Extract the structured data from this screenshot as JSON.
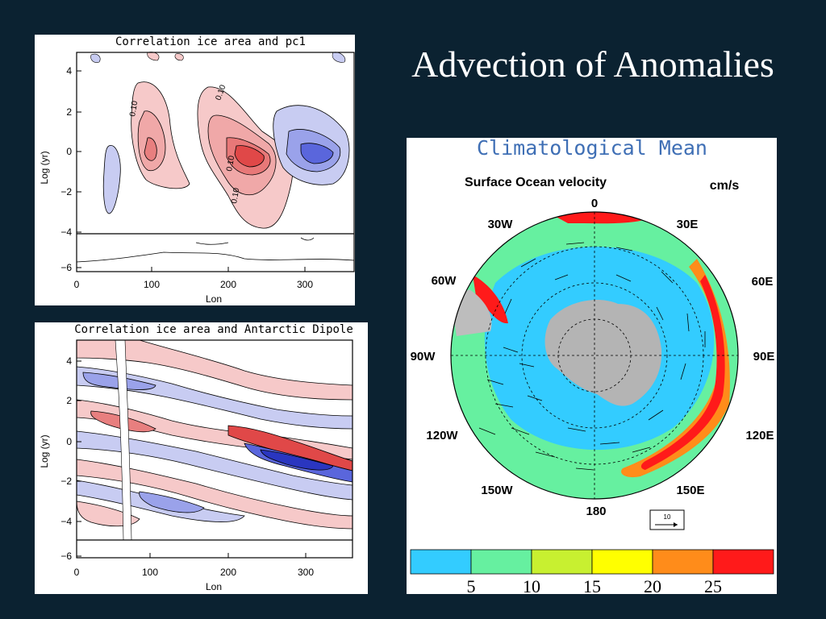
{
  "slide": {
    "title": "Advection of Anomalies"
  },
  "panel_top": {
    "title": "Correlation ice area and pc1",
    "xlabel": "Lon",
    "ylabel": "Log (yr)",
    "xticks": [
      "0",
      "100",
      "200",
      "300"
    ],
    "yticks": [
      "4",
      "2",
      "0",
      "−2",
      "−4",
      "−6"
    ],
    "contour_labels": [
      "0.10",
      "0.10",
      "0.10",
      "0.10"
    ]
  },
  "panel_bottom": {
    "title": "Correlation ice area and Antarctic Dipole",
    "xlabel": "Lon",
    "ylabel": "Log (yr)",
    "xticks": [
      "0",
      "100",
      "200",
      "300"
    ],
    "yticks": [
      "4",
      "2",
      "0",
      "−2",
      "−4",
      "−6"
    ]
  },
  "map": {
    "title": "Climatological Mean",
    "subtitle": "Surface Ocean velocity",
    "units": "cm/s",
    "lon_labels": {
      "n": "0",
      "ne1": "30E",
      "ne2": "60E",
      "e": "90E",
      "se1": "120E",
      "se2": "150E",
      "s": "180",
      "sw2": "150W",
      "sw1": "120W",
      "w": "90W",
      "nw2": "60W",
      "nw1": "30W"
    },
    "ref_vector_label": "10",
    "colorbar": {
      "ticks": [
        "5",
        "10",
        "15",
        "20",
        "25"
      ],
      "colors": [
        "#33ccff",
        "#66f0a0",
        "#c8f030",
        "#ffff00",
        "#ff8c1a",
        "#ff1a1a"
      ]
    }
  }
}
